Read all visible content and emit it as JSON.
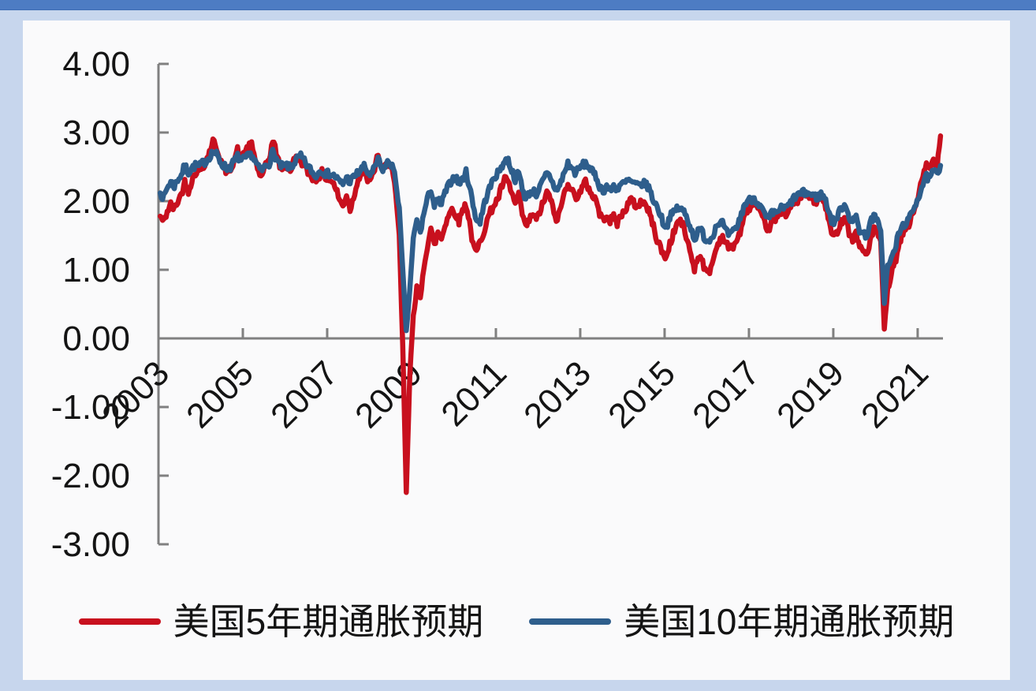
{
  "window": {
    "top_bar_color": "#4d7cc3",
    "frame_color": "#c7d6ed",
    "panel_color": "#fafafb"
  },
  "chart_data": {
    "type": "line",
    "title": "",
    "xlabel": "",
    "ylabel": "",
    "grid": false,
    "legend_position": "bottom",
    "axis_color": "#808080",
    "x_domain": [
      2003,
      2021.6
    ],
    "y_domain": [
      -3,
      4
    ],
    "y_ticks": [
      {
        "value": 4,
        "label": "4.00"
      },
      {
        "value": 3,
        "label": "3.00"
      },
      {
        "value": 2,
        "label": "2.00"
      },
      {
        "value": 1,
        "label": "1.00"
      },
      {
        "value": 0,
        "label": "0.00"
      },
      {
        "value": -1,
        "label": "-1.00"
      },
      {
        "value": -2,
        "label": "-2.00"
      },
      {
        "value": -3,
        "label": "-3.00"
      }
    ],
    "x_ticks": [
      {
        "value": 2003,
        "label": "2003"
      },
      {
        "value": 2005,
        "label": "2005"
      },
      {
        "value": 2007,
        "label": "2007"
      },
      {
        "value": 2009,
        "label": "2009"
      },
      {
        "value": 2011,
        "label": "2011"
      },
      {
        "value": 2013,
        "label": "2013"
      },
      {
        "value": 2015,
        "label": "2015"
      },
      {
        "value": 2017,
        "label": "2017"
      },
      {
        "value": 2019,
        "label": "2019"
      },
      {
        "value": 2021,
        "label": "2021"
      }
    ],
    "series": [
      {
        "name": "美国5年期通胀预期",
        "color": "#c8101e",
        "start_year": 2003,
        "interval": "monthly",
        "values": [
          1.78,
          1.7,
          1.85,
          1.95,
          1.88,
          2.0,
          2.1,
          2.28,
          2.15,
          2.3,
          2.42,
          2.45,
          2.5,
          2.58,
          2.72,
          2.88,
          2.78,
          2.62,
          2.5,
          2.42,
          2.48,
          2.6,
          2.75,
          2.62,
          2.72,
          2.78,
          2.82,
          2.62,
          2.42,
          2.35,
          2.52,
          2.62,
          2.88,
          2.72,
          2.52,
          2.48,
          2.52,
          2.45,
          2.58,
          2.65,
          2.6,
          2.5,
          2.42,
          2.38,
          2.28,
          2.35,
          2.42,
          2.35,
          2.32,
          2.28,
          2.18,
          2.02,
          1.92,
          2.1,
          1.88,
          2.05,
          2.28,
          2.38,
          2.45,
          2.32,
          2.3,
          2.48,
          2.7,
          2.42,
          2.5,
          2.58,
          2.45,
          2.1,
          1.5,
          -0.1,
          -2.24,
          -0.55,
          0.35,
          0.75,
          0.55,
          1.05,
          1.35,
          1.6,
          1.35,
          1.55,
          1.45,
          1.65,
          1.8,
          1.88,
          1.82,
          1.7,
          1.88,
          1.95,
          1.7,
          1.35,
          1.25,
          1.42,
          1.55,
          1.72,
          1.85,
          1.95,
          2.02,
          2.18,
          2.32,
          2.28,
          2.12,
          1.95,
          2.08,
          1.82,
          1.62,
          1.72,
          1.82,
          1.72,
          1.85,
          1.98,
          2.12,
          2.05,
          1.82,
          1.72,
          1.92,
          2.12,
          2.28,
          2.18,
          2.05,
          2.1,
          2.18,
          2.28,
          2.18,
          2.08,
          2.02,
          1.82,
          1.72,
          1.82,
          1.7,
          1.78,
          1.68,
          1.78,
          1.85,
          1.95,
          2.02,
          1.95,
          1.92,
          2.02,
          1.95,
          1.85,
          1.7,
          1.48,
          1.38,
          1.22,
          1.18,
          1.38,
          1.52,
          1.68,
          1.72,
          1.6,
          1.42,
          1.22,
          1.02,
          1.18,
          1.2,
          0.98,
          0.95,
          1.08,
          1.28,
          1.42,
          1.48,
          1.38,
          1.3,
          1.35,
          1.42,
          1.55,
          1.72,
          1.88,
          1.92,
          1.95,
          1.88,
          1.78,
          1.68,
          1.58,
          1.7,
          1.72,
          1.8,
          1.85,
          1.82,
          1.9,
          1.95,
          2.0,
          2.05,
          2.1,
          2.08,
          2.05,
          2.0,
          2.0,
          2.05,
          1.98,
          1.78,
          1.52,
          1.48,
          1.62,
          1.72,
          1.78,
          1.55,
          1.42,
          1.55,
          1.32,
          1.28,
          1.22,
          1.42,
          1.58,
          1.55,
          1.4,
          0.14,
          0.7,
          0.95,
          1.1,
          1.3,
          1.5,
          1.6,
          1.65,
          1.8,
          1.95,
          2.15,
          2.35,
          2.52,
          2.48,
          2.6,
          2.5,
          2.95
        ]
      },
      {
        "name": "美国10年期通胀预期",
        "color": "#2e5e8c",
        "start_year": 2003,
        "interval": "monthly",
        "values": [
          2.12,
          2.05,
          2.2,
          2.28,
          2.22,
          2.32,
          2.38,
          2.52,
          2.42,
          2.48,
          2.52,
          2.5,
          2.55,
          2.58,
          2.65,
          2.72,
          2.68,
          2.58,
          2.52,
          2.48,
          2.5,
          2.58,
          2.65,
          2.58,
          2.62,
          2.65,
          2.68,
          2.58,
          2.48,
          2.45,
          2.52,
          2.55,
          2.72,
          2.62,
          2.52,
          2.5,
          2.52,
          2.48,
          2.55,
          2.62,
          2.65,
          2.58,
          2.5,
          2.45,
          2.35,
          2.42,
          2.45,
          2.4,
          2.4,
          2.38,
          2.35,
          2.28,
          2.25,
          2.35,
          2.28,
          2.35,
          2.4,
          2.45,
          2.5,
          2.42,
          2.38,
          2.48,
          2.62,
          2.45,
          2.5,
          2.58,
          2.52,
          2.3,
          1.9,
          1.0,
          0.1,
          0.7,
          1.45,
          1.72,
          1.55,
          1.82,
          2.02,
          2.18,
          1.92,
          2.02,
          1.95,
          2.12,
          2.22,
          2.32,
          2.35,
          2.25,
          2.32,
          2.42,
          2.22,
          1.95,
          1.72,
          1.7,
          1.92,
          2.1,
          2.22,
          2.35,
          2.4,
          2.5,
          2.58,
          2.6,
          2.45,
          2.32,
          2.42,
          2.2,
          2.02,
          2.12,
          2.15,
          2.1,
          2.2,
          2.3,
          2.4,
          2.35,
          2.22,
          2.15,
          2.28,
          2.42,
          2.55,
          2.48,
          2.42,
          2.45,
          2.52,
          2.55,
          2.5,
          2.42,
          2.35,
          2.22,
          2.15,
          2.22,
          2.15,
          2.22,
          2.18,
          2.25,
          2.25,
          2.3,
          2.28,
          2.25,
          2.22,
          2.25,
          2.25,
          2.2,
          2.05,
          1.95,
          1.85,
          1.7,
          1.62,
          1.78,
          1.82,
          1.9,
          1.88,
          1.85,
          1.75,
          1.6,
          1.45,
          1.55,
          1.58,
          1.45,
          1.42,
          1.48,
          1.62,
          1.7,
          1.68,
          1.55,
          1.5,
          1.55,
          1.62,
          1.75,
          1.92,
          2.0,
          2.02,
          2.05,
          1.98,
          1.9,
          1.8,
          1.72,
          1.82,
          1.82,
          1.88,
          1.9,
          1.9,
          1.95,
          2.02,
          2.08,
          2.1,
          2.12,
          2.12,
          2.1,
          2.08,
          2.05,
          2.1,
          2.05,
          1.9,
          1.72,
          1.7,
          1.82,
          1.92,
          1.95,
          1.78,
          1.68,
          1.78,
          1.58,
          1.52,
          1.5,
          1.68,
          1.78,
          1.7,
          1.58,
          0.55,
          1.05,
          1.15,
          1.3,
          1.5,
          1.62,
          1.68,
          1.72,
          1.85,
          1.98,
          2.1,
          2.25,
          2.35,
          2.32,
          2.45,
          2.38,
          2.52
        ]
      }
    ]
  },
  "legend": {
    "items": [
      {
        "label": "美国5年期通胀预期"
      },
      {
        "label": "美国10年期通胀预期"
      }
    ]
  }
}
